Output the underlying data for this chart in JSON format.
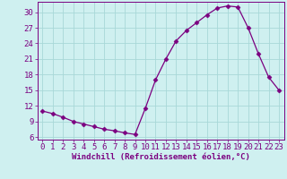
{
  "x": [
    0,
    1,
    2,
    3,
    4,
    5,
    6,
    7,
    8,
    9,
    10,
    11,
    12,
    13,
    14,
    15,
    16,
    17,
    18,
    19,
    20,
    21,
    22,
    23
  ],
  "y": [
    11.0,
    10.5,
    9.8,
    9.0,
    8.5,
    8.0,
    7.5,
    7.2,
    6.8,
    6.5,
    11.5,
    17.0,
    21.0,
    24.5,
    26.5,
    28.0,
    29.5,
    30.8,
    31.2,
    31.0,
    27.0,
    22.0,
    17.5,
    15.0
  ],
  "line_color": "#7b0080",
  "marker": "D",
  "marker_size": 2.5,
  "bg_color": "#cff0f0",
  "grid_color": "#a8d8d8",
  "xlabel": "Windchill (Refroidissement éolien,°C)",
  "xlim": [
    -0.5,
    23.5
  ],
  "ylim": [
    5.5,
    32
  ],
  "yticks": [
    6,
    9,
    12,
    15,
    18,
    21,
    24,
    27,
    30
  ],
  "xticks": [
    0,
    1,
    2,
    3,
    4,
    5,
    6,
    7,
    8,
    9,
    10,
    11,
    12,
    13,
    14,
    15,
    16,
    17,
    18,
    19,
    20,
    21,
    22,
    23
  ],
  "tick_color": "#7b0080",
  "label_color": "#7b0080",
  "font_size": 6.5
}
